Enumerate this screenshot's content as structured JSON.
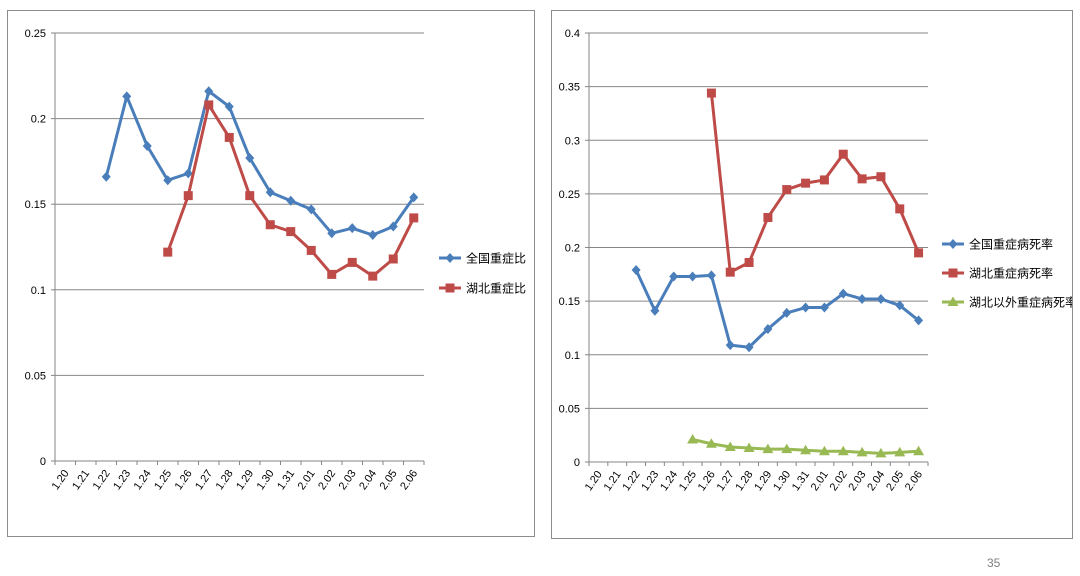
{
  "page_number": "35",
  "chart_data": [
    {
      "type": "line",
      "categories": [
        "1.20",
        "1.21",
        "1.22",
        "1.23",
        "1.24",
        "1.25",
        "1.26",
        "1.27",
        "1.28",
        "1.29",
        "1.30",
        "1.31",
        "2.01",
        "2.02",
        "2.03",
        "2.04",
        "2.05",
        "2.06"
      ],
      "ylim": [
        0,
        0.25
      ],
      "yticks": [
        "0",
        "0.05",
        "0.1",
        "0.15",
        "0.2",
        "0.25"
      ],
      "grid": true,
      "legend": "right",
      "series": [
        {
          "name": "全国重症比",
          "color": "#4a7ebb",
          "marker": "diamond",
          "values": [
            null,
            null,
            0.166,
            0.213,
            0.184,
            0.164,
            0.168,
            0.216,
            0.207,
            0.177,
            0.157,
            0.152,
            0.147,
            0.133,
            0.136,
            0.132,
            0.137,
            0.154
          ]
        },
        {
          "name": "湖北重症比",
          "color": "#be4b48",
          "marker": "square",
          "values": [
            null,
            null,
            null,
            null,
            null,
            0.122,
            0.155,
            0.208,
            0.189,
            0.155,
            0.138,
            0.134,
            0.123,
            0.109,
            0.116,
            0.108,
            0.118,
            0.142
          ]
        }
      ]
    },
    {
      "type": "line",
      "categories": [
        "1.20",
        "1.21",
        "1.22",
        "1.23",
        "1.24",
        "1.25",
        "1.26",
        "1.27",
        "1.28",
        "1.29",
        "1.30",
        "1.31",
        "2.01",
        "2.02",
        "2.03",
        "2.04",
        "2.05",
        "2.06"
      ],
      "ylim": [
        0,
        0.4
      ],
      "yticks": [
        "0",
        "0.05",
        "0.1",
        "0.15",
        "0.2",
        "0.25",
        "0.3",
        "0.35",
        "0.4"
      ],
      "grid": true,
      "legend": "right",
      "series": [
        {
          "name": "全国重症病死率",
          "color": "#4a7ebb",
          "marker": "diamond",
          "values": [
            null,
            null,
            0.179,
            0.141,
            0.173,
            0.173,
            0.174,
            0.109,
            0.107,
            0.124,
            0.139,
            0.144,
            0.144,
            0.157,
            0.152,
            0.152,
            0.146,
            0.132
          ]
        },
        {
          "name": "湖北重症病死率",
          "color": "#be4b48",
          "marker": "square",
          "values": [
            null,
            null,
            null,
            null,
            null,
            null,
            0.344,
            0.177,
            0.186,
            0.228,
            0.254,
            0.26,
            0.263,
            0.287,
            0.264,
            0.266,
            0.236,
            0.195
          ]
        },
        {
          "name": "湖北以外重症病死率",
          "color": "#98b954",
          "marker": "triangle",
          "values": [
            null,
            null,
            null,
            null,
            null,
            0.021,
            0.017,
            0.014,
            0.013,
            0.012,
            0.012,
            0.011,
            0.01,
            0.01,
            0.009,
            0.008,
            0.009,
            0.01
          ]
        }
      ]
    }
  ]
}
